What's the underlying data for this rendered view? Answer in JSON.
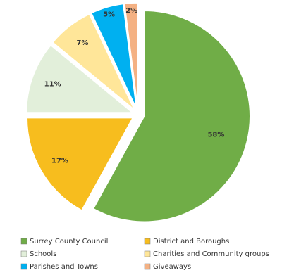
{
  "chart_data": {
    "type": "pie",
    "categories": [
      "Surrey County Council",
      "District and Boroughs",
      "Schools",
      "Charities and Community groups",
      "Parishes and Towns",
      "Giveaways"
    ],
    "values": [
      58,
      17,
      11,
      7,
      5,
      2
    ],
    "value_labels": [
      "58%",
      "17%",
      "11%",
      "7%",
      "5%",
      "2%"
    ],
    "colors": [
      "#70ad47",
      "#f7bd1e",
      "#e2efda",
      "#ffe699",
      "#00b0f0",
      "#f4b183"
    ],
    "legend": "bottom"
  }
}
